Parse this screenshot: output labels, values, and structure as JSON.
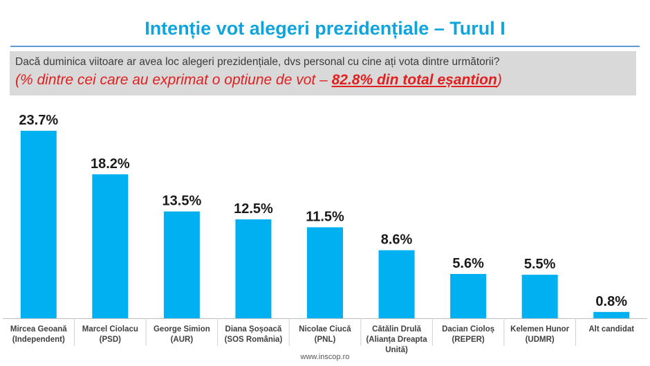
{
  "title": "Intenție vot alegeri prezidențiale – Turul I",
  "question": "Dacă duminica viitoare ar avea loc alegeri prezidențiale, dvs personal cu cine ați vota dintre următorii?",
  "subnote": {
    "prefix": "(% dintre cei care au exprimat o optiune de vot – ",
    "highlight": "82.8% din total eșantion",
    "suffix": ")"
  },
  "footer": "www.inscop.ro",
  "colors": {
    "bar": "#00b0f0",
    "title": "#0ea5df",
    "note": "#e01f1f",
    "box": "#d9d9d9"
  },
  "chart_data": {
    "type": "bar",
    "categories": [
      [
        "Mircea Geoană",
        "(Independent)"
      ],
      [
        "Marcel Ciolacu",
        "(PSD)"
      ],
      [
        "George Simion",
        "(AUR)"
      ],
      [
        "Diana Șoșoacă",
        "(SOS România)"
      ],
      [
        "Nicolae Ciucă",
        "(PNL)"
      ],
      [
        "Cătălin Drulă",
        "(Alianța Dreapta",
        "Unită)"
      ],
      [
        "Dacian Cioloș",
        "(REPER)"
      ],
      [
        "Kelemen Hunor",
        "(UDMR)"
      ],
      [
        "Alt candidat"
      ]
    ],
    "values": [
      23.7,
      18.2,
      13.5,
      12.5,
      11.5,
      8.6,
      5.6,
      5.5,
      0.8
    ],
    "value_labels": [
      "23.7%",
      "18.2%",
      "13.5%",
      "12.5%",
      "11.5%",
      "8.6%",
      "5.6%",
      "5.5%",
      "0.8%"
    ],
    "ylim": [
      0,
      23.7
    ],
    "grid": false,
    "legend": "none"
  }
}
